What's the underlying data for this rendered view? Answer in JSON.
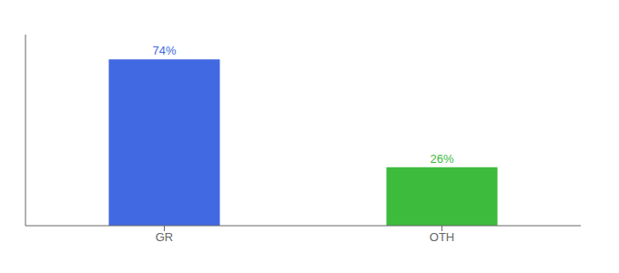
{
  "chart_data": {
    "type": "bar",
    "categories": [
      "GR",
      "OTH"
    ],
    "values": [
      74,
      26
    ],
    "value_labels": [
      "74%",
      "26%"
    ],
    "colors": [
      "#4169e1",
      "#3dbb3d"
    ],
    "ylim": [
      0,
      85
    ],
    "data_labels": true,
    "tick_labels": "x",
    "grid": false
  }
}
